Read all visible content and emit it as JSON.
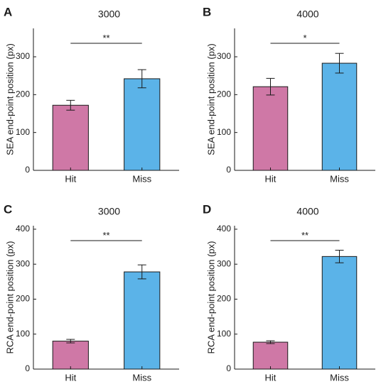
{
  "colors": {
    "hit": "#cf78a6",
    "miss": "#5bb3e8",
    "axis": "#1a1a1a",
    "error": "#1a1a1a"
  },
  "chart_data": [
    {
      "panel": "A",
      "type": "bar",
      "title": "3000",
      "ylabel": "SEA end-point position (px)",
      "categories": [
        "Hit",
        "Miss"
      ],
      "values": [
        172,
        242
      ],
      "errors": [
        13,
        24
      ],
      "ylim": [
        0,
        375
      ],
      "yticks": [
        0,
        100,
        200,
        300
      ],
      "significance": "**",
      "grid": false
    },
    {
      "panel": "B",
      "type": "bar",
      "title": "4000",
      "ylabel": "SEA end-point position (px)",
      "categories": [
        "Hit",
        "Miss"
      ],
      "values": [
        221,
        283
      ],
      "errors": [
        22,
        26
      ],
      "ylim": [
        0,
        375
      ],
      "yticks": [
        0,
        100,
        200,
        300
      ],
      "significance": "*",
      "grid": false
    },
    {
      "panel": "C",
      "type": "bar",
      "title": "3000",
      "ylabel": "RCA end-point position (px)",
      "categories": [
        "Hit",
        "Miss"
      ],
      "values": [
        80,
        278
      ],
      "errors": [
        5,
        20
      ],
      "ylim": [
        0,
        410
      ],
      "yticks": [
        0,
        100,
        200,
        300,
        400
      ],
      "significance": "**",
      "grid": false
    },
    {
      "panel": "D",
      "type": "bar",
      "title": "4000",
      "ylabel": "RCA end-point position (px)",
      "categories": [
        "Hit",
        "Miss"
      ],
      "values": [
        77,
        322
      ],
      "errors": [
        4,
        18
      ],
      "ylim": [
        0,
        410
      ],
      "yticks": [
        0,
        100,
        200,
        300,
        400
      ],
      "significance": "**",
      "grid": false
    }
  ]
}
